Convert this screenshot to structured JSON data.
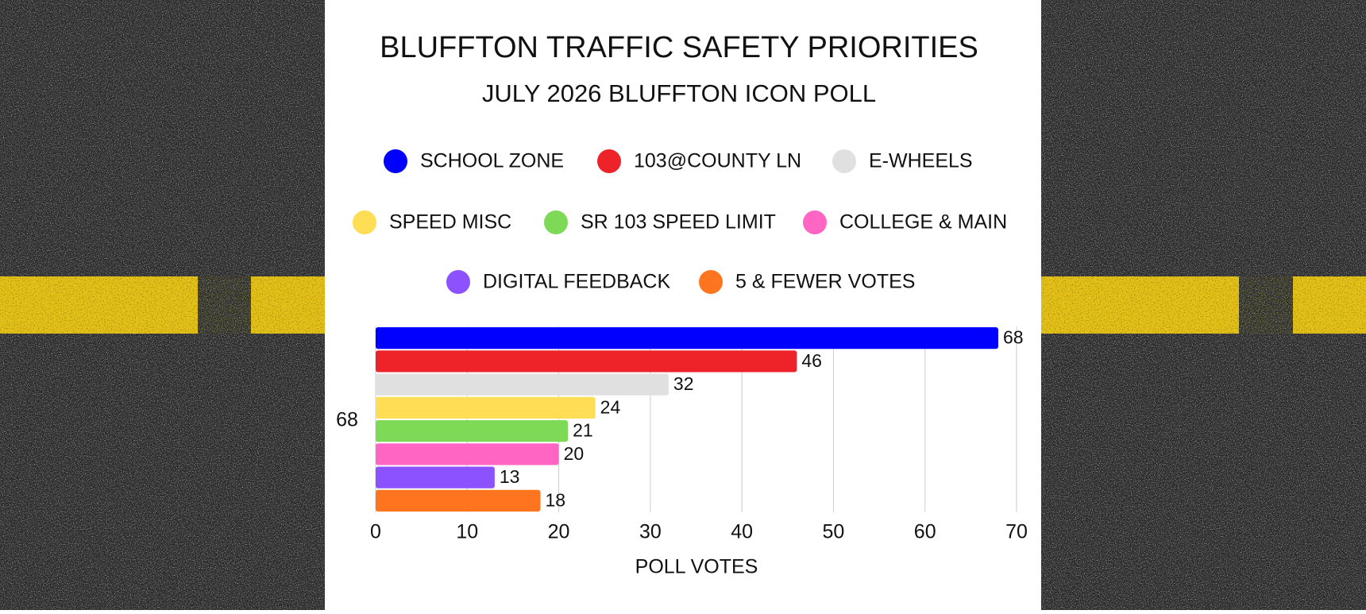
{
  "chart_data": {
    "type": "bar",
    "orientation": "horizontal",
    "title": "BLUFFTON TRAFFIC SAFETY PRIORITIES",
    "subtitle": "JULY 2026 BLUFFTON ICON POLL",
    "x_label": "POLL VOTES",
    "categories": [
      "68"
    ],
    "series": [
      {
        "name": "SCHOOL ZONE",
        "color": "#0000ff",
        "values": [
          68
        ]
      },
      {
        "name": "103@COUNTY LN",
        "color": "#ee2229",
        "values": [
          46
        ]
      },
      {
        "name": "E-WHEELS",
        "color": "#e0e0e0",
        "values": [
          32
        ]
      },
      {
        "name": "SPEED MISC",
        "color": "#ffdd55",
        "values": [
          24
        ]
      },
      {
        "name": "SR 103 SPEED LIMIT",
        "color": "#7ed957",
        "values": [
          21
        ]
      },
      {
        "name": "COLLEGE & MAIN",
        "color": "#ff66c4",
        "values": [
          20
        ]
      },
      {
        "name": "DIGITAL FEEDBACK",
        "color": "#8c52ff",
        "values": [
          13
        ]
      },
      {
        "name": "5 & FEWER VOTES",
        "color": "#ff751f",
        "values": [
          18
        ]
      }
    ],
    "xlim": [
      0,
      70
    ],
    "xticks": [
      0,
      10,
      20,
      30,
      40,
      50,
      60,
      70
    ],
    "grid": true,
    "legend": "top"
  }
}
